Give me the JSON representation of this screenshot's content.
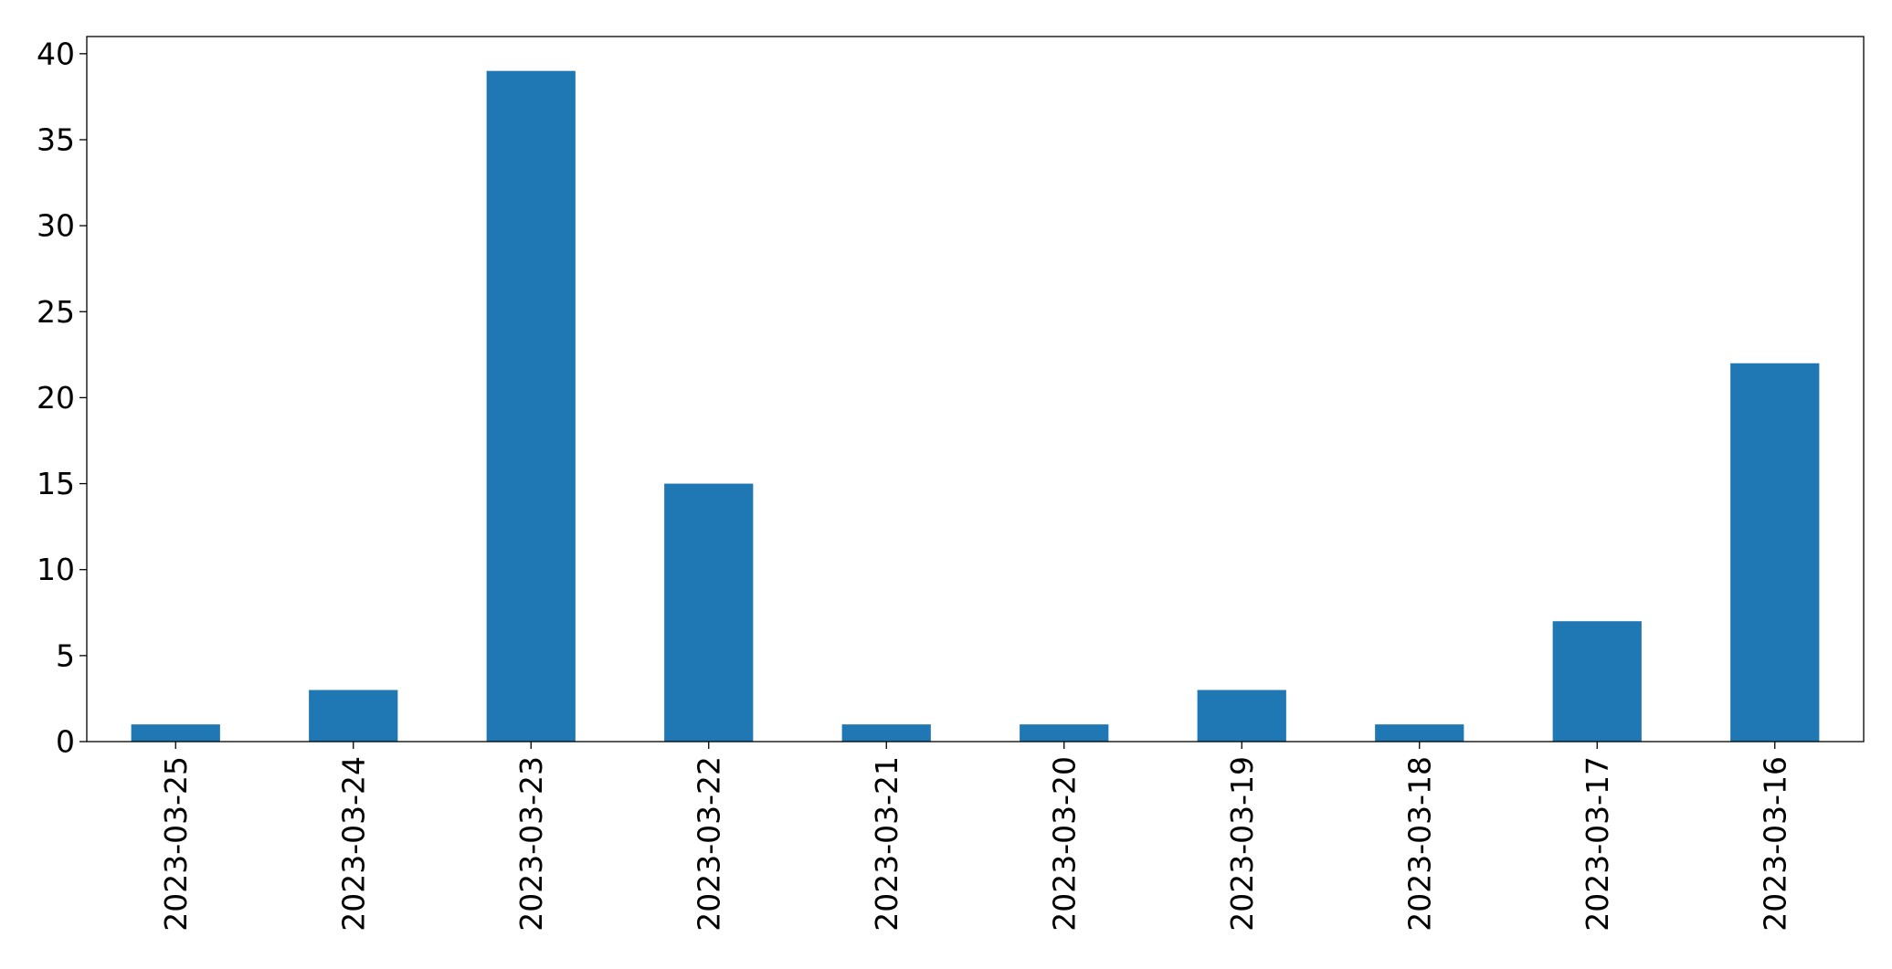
{
  "chart_data": {
    "type": "bar",
    "title": "",
    "xlabel": "",
    "ylabel": "",
    "categories": [
      "2023-03-25",
      "2023-03-24",
      "2023-03-23",
      "2023-03-22",
      "2023-03-21",
      "2023-03-20",
      "2023-03-19",
      "2023-03-18",
      "2023-03-17",
      "2023-03-16"
    ],
    "values": [
      1,
      3,
      39,
      15,
      1,
      1,
      3,
      1,
      7,
      22
    ],
    "ylim": [
      0,
      41
    ],
    "yticks": [
      0,
      5,
      10,
      15,
      20,
      25,
      30,
      35,
      40
    ],
    "bar_color": "#1f77b4",
    "grid": false,
    "legend": "none"
  }
}
